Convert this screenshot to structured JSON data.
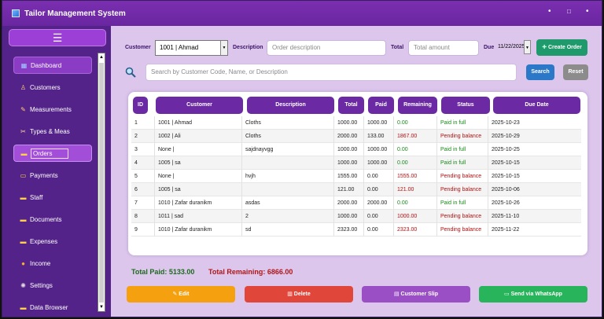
{
  "app": {
    "title": "Tailor Management System",
    "window_controls": [
      "•",
      "□",
      "•"
    ]
  },
  "sidebar": {
    "menu_icon": "☰",
    "items": [
      {
        "label": "Dashboard",
        "icon": "dashboard-icon",
        "glyph": "▦"
      },
      {
        "label": "Customers",
        "icon": "customers-icon",
        "glyph": "♙"
      },
      {
        "label": "Measurements",
        "icon": "ruler-icon",
        "glyph": "✎"
      },
      {
        "label": "Types & Meas",
        "icon": "scissors-icon",
        "glyph": "✂"
      },
      {
        "label": "Orders",
        "icon": "folder-icon",
        "glyph": "▬"
      },
      {
        "label": "Payments",
        "icon": "card-icon",
        "glyph": "▭"
      },
      {
        "label": "Staff",
        "icon": "staff-icon",
        "glyph": "▬"
      },
      {
        "label": "Documents",
        "icon": "documents-icon",
        "glyph": "▬"
      },
      {
        "label": "Expenses",
        "icon": "expenses-icon",
        "glyph": "▬"
      },
      {
        "label": "Income",
        "icon": "money-bag-icon",
        "glyph": "●"
      },
      {
        "label": "Settings",
        "icon": "gear-icon",
        "glyph": "✺"
      },
      {
        "label": "Data Browser",
        "icon": "browser-icon",
        "glyph": "▬"
      }
    ]
  },
  "form": {
    "customer_label": "Customer",
    "customer_value": "1001 | Ahmad",
    "description_label": "Description",
    "description_placeholder": "Order description",
    "total_label": "Total",
    "total_placeholder": "Total amount",
    "due_label": "Due",
    "due_value": "11/22/2025",
    "create_button": "Create Order"
  },
  "search": {
    "placeholder": "Search by Customer Code, Name, or Description",
    "search_button": "Search",
    "reset_button": "Reset"
  },
  "table": {
    "columns": [
      "ID",
      "Customer",
      "Description",
      "Total",
      "Paid",
      "Remaining",
      "Status",
      "Due Date"
    ],
    "rows": [
      {
        "id": "1",
        "customer": "1001 | Ahmad",
        "description": "Cloths",
        "total": "1000.00",
        "paid": "1000.00",
        "remaining": "0.00",
        "status": "Paid in full",
        "due": "2025-10-23"
      },
      {
        "id": "2",
        "customer": "1002 | Ali",
        "description": "Cloths",
        "total": "2000.00",
        "paid": "133.00",
        "remaining": "1867.00",
        "status": "Pending balance",
        "due": "2025-10-29"
      },
      {
        "id": "3",
        "customer": "None |",
        "description": "sajdnayvgg",
        "total": "1000.00",
        "paid": "1000.00",
        "remaining": "0.00",
        "status": "Paid in full",
        "due": "2025-10-25"
      },
      {
        "id": "4",
        "customer": "1005 | sa",
        "description": "",
        "total": "1000.00",
        "paid": "1000.00",
        "remaining": "0.00",
        "status": "Paid in full",
        "due": "2025-10-15"
      },
      {
        "id": "5",
        "customer": "None |",
        "description": "hvjh",
        "total": "1555.00",
        "paid": "0.00",
        "remaining": "1555.00",
        "status": "Pending balance",
        "due": "2025-10-15"
      },
      {
        "id": "6",
        "customer": "1005 | sa",
        "description": "",
        "total": "121.00",
        "paid": "0.00",
        "remaining": "121.00",
        "status": "Pending balance",
        "due": "2025-10-06"
      },
      {
        "id": "7",
        "customer": "1010 | Zafar duranikm",
        "description": "asdas",
        "total": "2000.00",
        "paid": "2000.00",
        "remaining": "0.00",
        "status": "Paid in full",
        "due": "2025-10-26"
      },
      {
        "id": "8",
        "customer": "1011 | sad",
        "description": "2",
        "total": "1000.00",
        "paid": "0.00",
        "remaining": "1000.00",
        "status": "Pending balance",
        "due": "2025-11-10"
      },
      {
        "id": "9",
        "customer": "1010 | Zafar duranikm",
        "description": "sd",
        "total": "2323.00",
        "paid": "0.00",
        "remaining": "2323.00",
        "status": "Pending balance",
        "due": "2025-11-22"
      }
    ]
  },
  "totals": {
    "paid": "Total Paid: 5133.00",
    "remaining": "Total Remaining: 6866.00"
  },
  "actions": {
    "edit": "Edit",
    "delete": "Delete",
    "slip": "Customer Slip",
    "whatsapp": "Send via WhatsApp"
  },
  "colors": {
    "title_bar": "#6a26a0",
    "sidebar": "#54238a",
    "content_bg": "#dcc6ec",
    "table_header": "#6b2aa4",
    "create_button": "#1e9a6c",
    "search_button": "#2c78c8",
    "reset_button": "#8c8c8c",
    "edit_button": "#f5a00e",
    "delete_button": "#e0473a",
    "slip_button": "#9a4fc4",
    "whatsapp_button": "#28b45a",
    "paid_status": "#1a8a1a",
    "pending_status": "#b01010"
  }
}
